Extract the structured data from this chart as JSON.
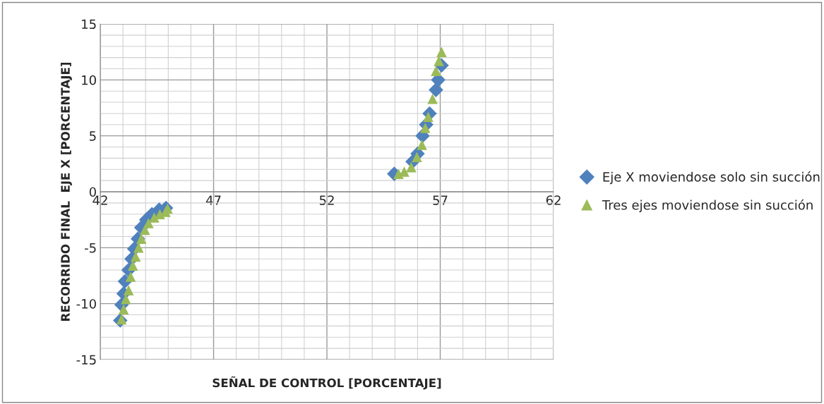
{
  "chart_data": {
    "type": "scatter",
    "xlabel": "SEÑAL DE CONTROL [PORCENTAJE]",
    "ylabel": "RECORRIDO FINAL  EJE X [PORCENTAJE]",
    "xlim": [
      42,
      62
    ],
    "xticks": [
      42,
      47,
      52,
      57,
      62
    ],
    "ylim": [
      -15,
      15
    ],
    "yticks": [
      -15,
      -10,
      -5,
      0,
      5,
      10,
      15
    ],
    "grid": true,
    "legend": "right",
    "series": [
      {
        "name": "Eje X moviendose solo sin succión",
        "color": "#4f81bd",
        "marker": "diamond",
        "x": [
          42.88,
          42.94,
          43.03,
          43.09,
          43.25,
          43.38,
          43.5,
          43.66,
          43.81,
          44.03,
          44.28,
          44.6,
          44.9,
          54.97,
          55.22,
          55.53,
          55.78,
          56.0,
          56.22,
          56.38,
          56.53,
          56.66,
          56.81,
          56.91,
          57.06
        ],
        "values": [
          -11.5,
          -10.1,
          -9.1,
          -8.0,
          -7.0,
          -6.0,
          -5.1,
          -4.2,
          -3.2,
          -2.5,
          -2.0,
          -1.6,
          -1.45,
          1.6,
          null,
          null,
          2.7,
          3.4,
          5.0,
          6.0,
          7.0,
          null,
          9.1,
          10.0,
          11.3
        ]
      },
      {
        "name": "Tres ejes moviendose sin succión",
        "color": "#9bbb59",
        "marker": "triangle",
        "x": [
          42.94,
          43.03,
          43.13,
          43.25,
          43.34,
          43.44,
          43.56,
          43.69,
          43.81,
          43.97,
          44.13,
          44.38,
          44.63,
          44.88,
          44.97,
          55.16,
          55.41,
          55.72,
          55.97,
          56.19,
          56.34,
          56.47,
          56.66,
          56.81,
          56.94,
          57.06
        ],
        "values": [
          -11.4,
          -10.5,
          -9.6,
          -8.8,
          -7.6,
          -6.6,
          -5.8,
          -5.0,
          -4.2,
          -3.4,
          -2.8,
          -2.3,
          -2.0,
          -1.8,
          -1.5,
          1.6,
          1.8,
          2.2,
          3.1,
          4.2,
          5.7,
          6.7,
          8.3,
          10.8,
          11.7,
          12.5
        ]
      }
    ]
  }
}
